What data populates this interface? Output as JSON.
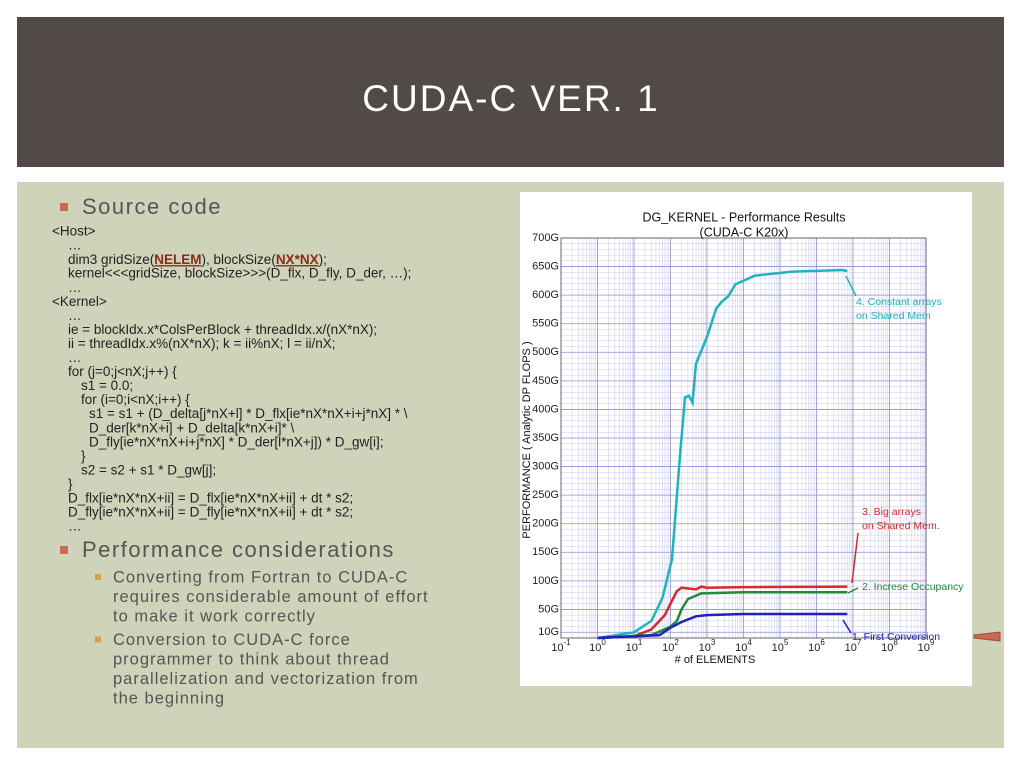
{
  "header": {
    "title": "CUDA-C VER. 1"
  },
  "body": {
    "bullets": [
      {
        "heading": "Source code",
        "code_lines": [
          "<Host>",
          "…",
          [
            "dim3 gridSize(",
            "NELEM",
            "), blockSize(",
            "NX*NX",
            ");"
          ],
          "kernel<<<gridSize, blockSize>>>(D_flx, D_fly, D_der, …);",
          "…",
          "<Kernel>",
          "…",
          "ie = blockIdx.x*ColsPerBlock + threadIdx.x/(nX*nX);",
          "ii = threadIdx.x%(nX*nX); k = ii%nX; l = ii/nX;",
          "…",
          "for (j=0;j<nX;j++) {",
          "s1 = 0.0;",
          "for (i=0;i<nX;i++) {",
          "s1 = s1 + (D_delta[j*nX+l] * D_flx[ie*nX*nX+i+j*nX] * \\",
          "D_der[k*nX+i] + D_delta[k*nX+i]* \\",
          "D_fly[ie*nX*nX+i+j*nX] * D_der[l*nX+j]) * D_gw[i];",
          "}",
          "s2 = s2 + s1 * D_gw[j];",
          "}",
          "D_flx[ie*nX*nX+ii] = D_flx[ie*nX*nX+ii] + dt * s2;",
          "D_fly[ie*nX*nX+ii] = D_fly[ie*nX*nX+ii] + dt * s2;",
          "…"
        ]
      },
      {
        "heading": "Performance considerations",
        "sub_bullets": [
          [
            "Converting from Fortran to CUDA-C",
            "requires considerable amount of effort",
            "to make it work correctly"
          ],
          [
            "Conversion to CUDA-C force",
            "programmer to think about thread",
            "parallelization and vectorization from",
            "the beginning"
          ]
        ]
      }
    ],
    "chart": {
      "type": "line",
      "title": [
        "DG_KERNEL - Performance Results",
        "(CUDA-C K20x)"
      ],
      "x_label": "# of ELEMENTS",
      "y_label": "PERFORMANCE ( Analytic DP FLOPS )",
      "log_x": true,
      "grid": true,
      "xlim": [
        0.1,
        1000000000
      ],
      "ylim": [
        0,
        700
      ],
      "xticks": [
        {
          "value": 0.1,
          "label": "10",
          "exponent": "-1"
        },
        {
          "value": 1,
          "label": "10",
          "exponent": "0"
        },
        {
          "value": 10,
          "label": "10",
          "exponent": "1"
        },
        {
          "value": 100,
          "label": "10",
          "exponent": "2"
        },
        {
          "value": 1000,
          "label": "10",
          "exponent": "3"
        },
        {
          "value": 10000,
          "label": "10",
          "exponent": "4"
        },
        {
          "value": 100000,
          "label": "10",
          "exponent": "5"
        },
        {
          "value": 1000000,
          "label": "10",
          "exponent": "6"
        },
        {
          "value": 10000000,
          "label": "10",
          "exponent": "7"
        },
        {
          "value": 100000000,
          "label": "10",
          "exponent": "8"
        },
        {
          "value": 1000000000,
          "label": "10",
          "exponent": "9"
        }
      ],
      "yticks": [
        {
          "value": 10,
          "label": "10G"
        },
        {
          "value": 50,
          "label": "50G"
        },
        {
          "value": 100,
          "label": "100G"
        },
        {
          "value": 150,
          "label": "150G"
        },
        {
          "value": 200,
          "label": "200G"
        },
        {
          "value": 250,
          "label": "250G"
        },
        {
          "value": 300,
          "label": "300G"
        },
        {
          "value": 350,
          "label": "350G"
        },
        {
          "value": 400,
          "label": "400G"
        },
        {
          "value": 450,
          "label": "450G"
        },
        {
          "value": 500,
          "label": "500G"
        },
        {
          "value": 550,
          "label": "550G"
        },
        {
          "value": 600,
          "label": "600G"
        },
        {
          "value": 650,
          "label": "650G"
        },
        {
          "value": 700,
          "label": "700G"
        }
      ],
      "series": [
        {
          "label_lines": [
            "4. Constant arrays",
            "on Shared Mem"
          ],
          "color": "#1fb3bd",
          "x": [
            1,
            10,
            30,
            60,
            110,
            180,
            250,
            320,
            400,
            500,
            1000,
            1800,
            2600,
            3800,
            6000,
            20000,
            200000,
            5000000,
            7000000
          ],
          "values": [
            0,
            10,
            30,
            70,
            138,
            315,
            421,
            424,
            412,
            480,
            527,
            577,
            589,
            598,
            619,
            634,
            641,
            644,
            642
          ]
        },
        {
          "label_lines": [
            "3. Big arrays",
            "on Shared Mem."
          ],
          "color": "#d62b2b",
          "x": [
            1,
            10,
            30,
            70,
            100,
            150,
            200,
            500,
            700,
            1000,
            10000,
            7000000
          ],
          "values": [
            0,
            3,
            15,
            40,
            60,
            82,
            88,
            85,
            90,
            88,
            89,
            90
          ]
        },
        {
          "label_lines": [
            "2. Increse Occupancy"
          ],
          "color": "#1f8a3a",
          "x": [
            1,
            30,
            100,
            150,
            200,
            300,
            700,
            10000,
            7000000
          ],
          "values": [
            0,
            5,
            20,
            30,
            50,
            68,
            78,
            80,
            80
          ]
        },
        {
          "label_lines": [
            "1. First Conversion"
          ],
          "color": "#2020c0",
          "x": [
            1,
            50,
            100,
            200,
            500,
            1000,
            10000,
            7000000
          ],
          "values": [
            0,
            5,
            18,
            28,
            38,
            40,
            42,
            42
          ]
        }
      ]
    }
  }
}
